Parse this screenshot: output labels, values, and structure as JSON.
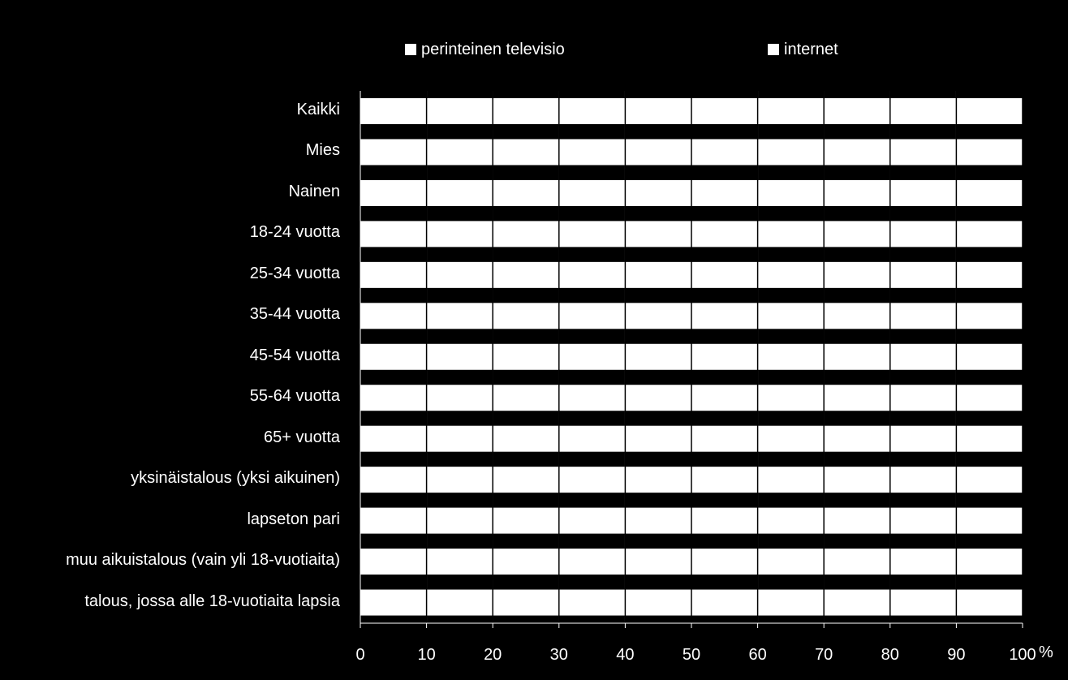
{
  "chart_data": {
    "type": "bar",
    "orientation": "horizontal",
    "stacked": true,
    "categories": [
      "Kaikki",
      "Mies",
      "Nainen",
      "18-24 vuotta",
      "25-34 vuotta",
      "35-44 vuotta",
      "45-54 vuotta",
      "55-64 vuotta",
      "65+ vuotta",
      "yksinäistalous (yksi aikuinen)",
      "lapseton pari",
      "muu aikuistalous (vain yli 18-vuotiaita)",
      "talous, jossa alle 18-vuotiaita lapsia"
    ],
    "series": [
      {
        "name": "perinteinen televisio",
        "color": "#ffffff",
        "values": [
          100,
          100,
          100,
          100,
          100,
          100,
          100,
          100,
          100,
          100,
          100,
          100,
          100
        ]
      },
      {
        "name": "internet",
        "color": "#ffffff",
        "values": [
          0,
          0,
          0,
          0,
          0,
          0,
          0,
          0,
          0,
          0,
          0,
          0,
          0
        ]
      }
    ],
    "xlim": [
      0,
      100
    ],
    "xticks": [
      "0",
      "10",
      "20",
      "30",
      "40",
      "50",
      "60",
      "70",
      "80",
      "90",
      "100"
    ],
    "xunit": "%",
    "grid": true,
    "legend_position": "top",
    "background": "#000000",
    "grid_color": "#000000"
  }
}
